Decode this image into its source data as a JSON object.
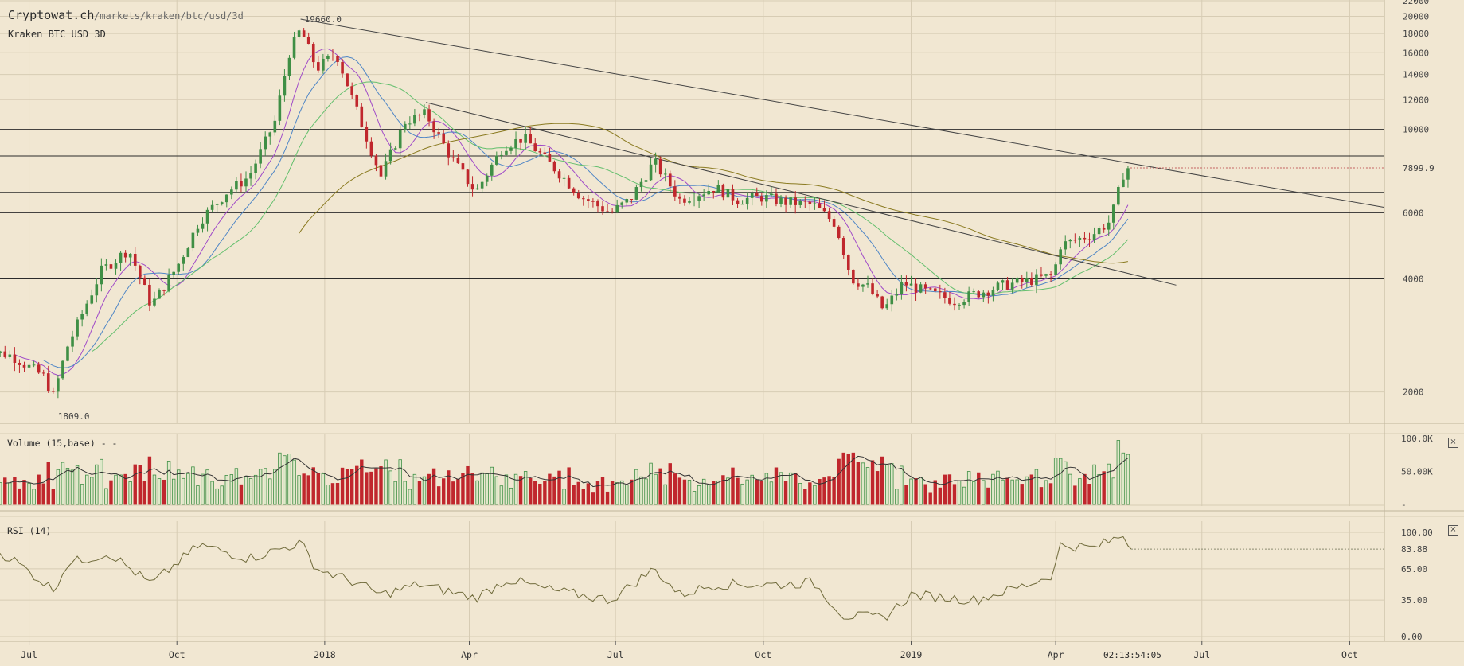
{
  "header": {
    "site": "Cryptowat.ch",
    "path": "/markets/kraken/btc/usd/3d",
    "market": "Kraken BTC USD 3D"
  },
  "price_pane": {
    "scale": "log",
    "y_ticks": [
      "22000",
      "20000",
      "18000",
      "16000",
      "14000",
      "12000",
      "10000",
      "7899.9",
      "6000",
      "4000",
      "2000"
    ],
    "current_price_label": "7899.9",
    "high_label": "19660.0",
    "low_label": "1809.0",
    "horizontal_levels": [
      10000,
      8500,
      6800,
      6000,
      4000
    ],
    "colors": {
      "up": "#3f8f45",
      "down": "#c0272d",
      "ma_purple": "#a04ac8",
      "ma_blue": "#4f86c6",
      "ma_green": "#63bf6d",
      "ma_olive": "#8a7a20",
      "trend": "#444444",
      "current": "#c46060"
    }
  },
  "volume_pane": {
    "label": "Volume (15,base) - -",
    "y_ticks": [
      "100.0K",
      "50.00K",
      "-"
    ]
  },
  "rsi_pane": {
    "label": "RSI (14)",
    "y_ticks": [
      "100.00",
      "83.88",
      "65.00",
      "35.00",
      "0.00"
    ],
    "current": "83.88"
  },
  "x_axis": {
    "ticks": [
      "Jul",
      "Oct",
      "2018",
      "Apr",
      "Jul",
      "Oct",
      "2019",
      "Apr",
      "Jul",
      "Oct"
    ],
    "clock": "02:13:54:05"
  },
  "close_icon": "×",
  "chart_data": {
    "type": "candlestick",
    "title": "Kraken BTC USD 3D",
    "x_range": [
      "2017-06-01",
      "2019-11-01"
    ],
    "y_scale": "log",
    "ylim": [
      1650,
      22000
    ],
    "grid": true,
    "price_anchors": [
      [
        "2017-06-01",
        2600
      ],
      [
        "2017-06-20",
        2500
      ],
      [
        "2017-07-10",
        2200
      ],
      [
        "2017-07-16",
        1950
      ],
      [
        "2017-07-25",
        2650
      ],
      [
        "2017-08-15",
        4200
      ],
      [
        "2017-09-01",
        4800
      ],
      [
        "2017-09-15",
        3400
      ],
      [
        "2017-10-01",
        4300
      ],
      [
        "2017-10-15",
        5700
      ],
      [
        "2017-11-01",
        6800
      ],
      [
        "2017-11-15",
        7500
      ],
      [
        "2017-12-01",
        10500
      ],
      [
        "2017-12-10",
        16000
      ],
      [
        "2017-12-17",
        18500
      ],
      [
        "2017-12-27",
        14500
      ],
      [
        "2018-01-08",
        16000
      ],
      [
        "2018-01-20",
        11500
      ],
      [
        "2018-02-05",
        7500
      ],
      [
        "2018-02-20",
        10500
      ],
      [
        "2018-03-05",
        11000
      ],
      [
        "2018-03-20",
        8500
      ],
      [
        "2018-04-05",
        6800
      ],
      [
        "2018-04-22",
        9000
      ],
      [
        "2018-05-05",
        9500
      ],
      [
        "2018-05-25",
        7800
      ],
      [
        "2018-06-10",
        6600
      ],
      [
        "2018-06-28",
        6000
      ],
      [
        "2018-07-10",
        6500
      ],
      [
        "2018-07-25",
        8200
      ],
      [
        "2018-08-10",
        6500
      ],
      [
        "2018-09-01",
        7000
      ],
      [
        "2018-09-15",
        6500
      ],
      [
        "2018-10-01",
        6600
      ],
      [
        "2018-10-15",
        6400
      ],
      [
        "2018-11-01",
        6300
      ],
      [
        "2018-11-15",
        5600
      ],
      [
        "2018-11-25",
        4000
      ],
      [
        "2018-12-05",
        3800
      ],
      [
        "2018-12-15",
        3300
      ],
      [
        "2018-12-27",
        3900
      ],
      [
        "2019-01-10",
        3700
      ],
      [
        "2019-01-28",
        3500
      ],
      [
        "2019-02-10",
        3650
      ],
      [
        "2019-02-28",
        3850
      ],
      [
        "2019-03-15",
        3950
      ],
      [
        "2019-03-31",
        4100
      ],
      [
        "2019-04-03",
        4900
      ],
      [
        "2019-04-15",
        5100
      ],
      [
        "2019-04-25",
        5300
      ],
      [
        "2019-05-05",
        5700
      ],
      [
        "2019-05-10",
        6800
      ],
      [
        "2019-05-14",
        7900
      ],
      [
        "2019-05-18",
        7899.9
      ]
    ],
    "rsi_anchors": [
      [
        "2017-06-01",
        88
      ],
      [
        "2017-06-20",
        75
      ],
      [
        "2017-07-16",
        45
      ],
      [
        "2017-07-25",
        70
      ],
      [
        "2017-08-20",
        80
      ],
      [
        "2017-09-15",
        50
      ],
      [
        "2017-10-15",
        88
      ],
      [
        "2017-11-15",
        75
      ],
      [
        "2017-12-17",
        90
      ],
      [
        "2017-12-27",
        65
      ],
      [
        "2018-01-20",
        52
      ],
      [
        "2018-02-05",
        40
      ],
      [
        "2018-03-01",
        50
      ],
      [
        "2018-04-05",
        37
      ],
      [
        "2018-04-25",
        55
      ],
      [
        "2018-05-20",
        45
      ],
      [
        "2018-06-28",
        35
      ],
      [
        "2018-07-25",
        65
      ],
      [
        "2018-08-10",
        40
      ],
      [
        "2018-09-01",
        50
      ],
      [
        "2018-10-15",
        50
      ],
      [
        "2018-11-01",
        52
      ],
      [
        "2018-11-20",
        20
      ],
      [
        "2018-12-15",
        18
      ],
      [
        "2019-01-01",
        40
      ],
      [
        "2019-02-10",
        35
      ],
      [
        "2019-03-15",
        50
      ],
      [
        "2019-03-31",
        60
      ],
      [
        "2019-04-03",
        88
      ],
      [
        "2019-04-25",
        85
      ],
      [
        "2019-05-14",
        98
      ],
      [
        "2019-05-18",
        83.88
      ]
    ]
  }
}
